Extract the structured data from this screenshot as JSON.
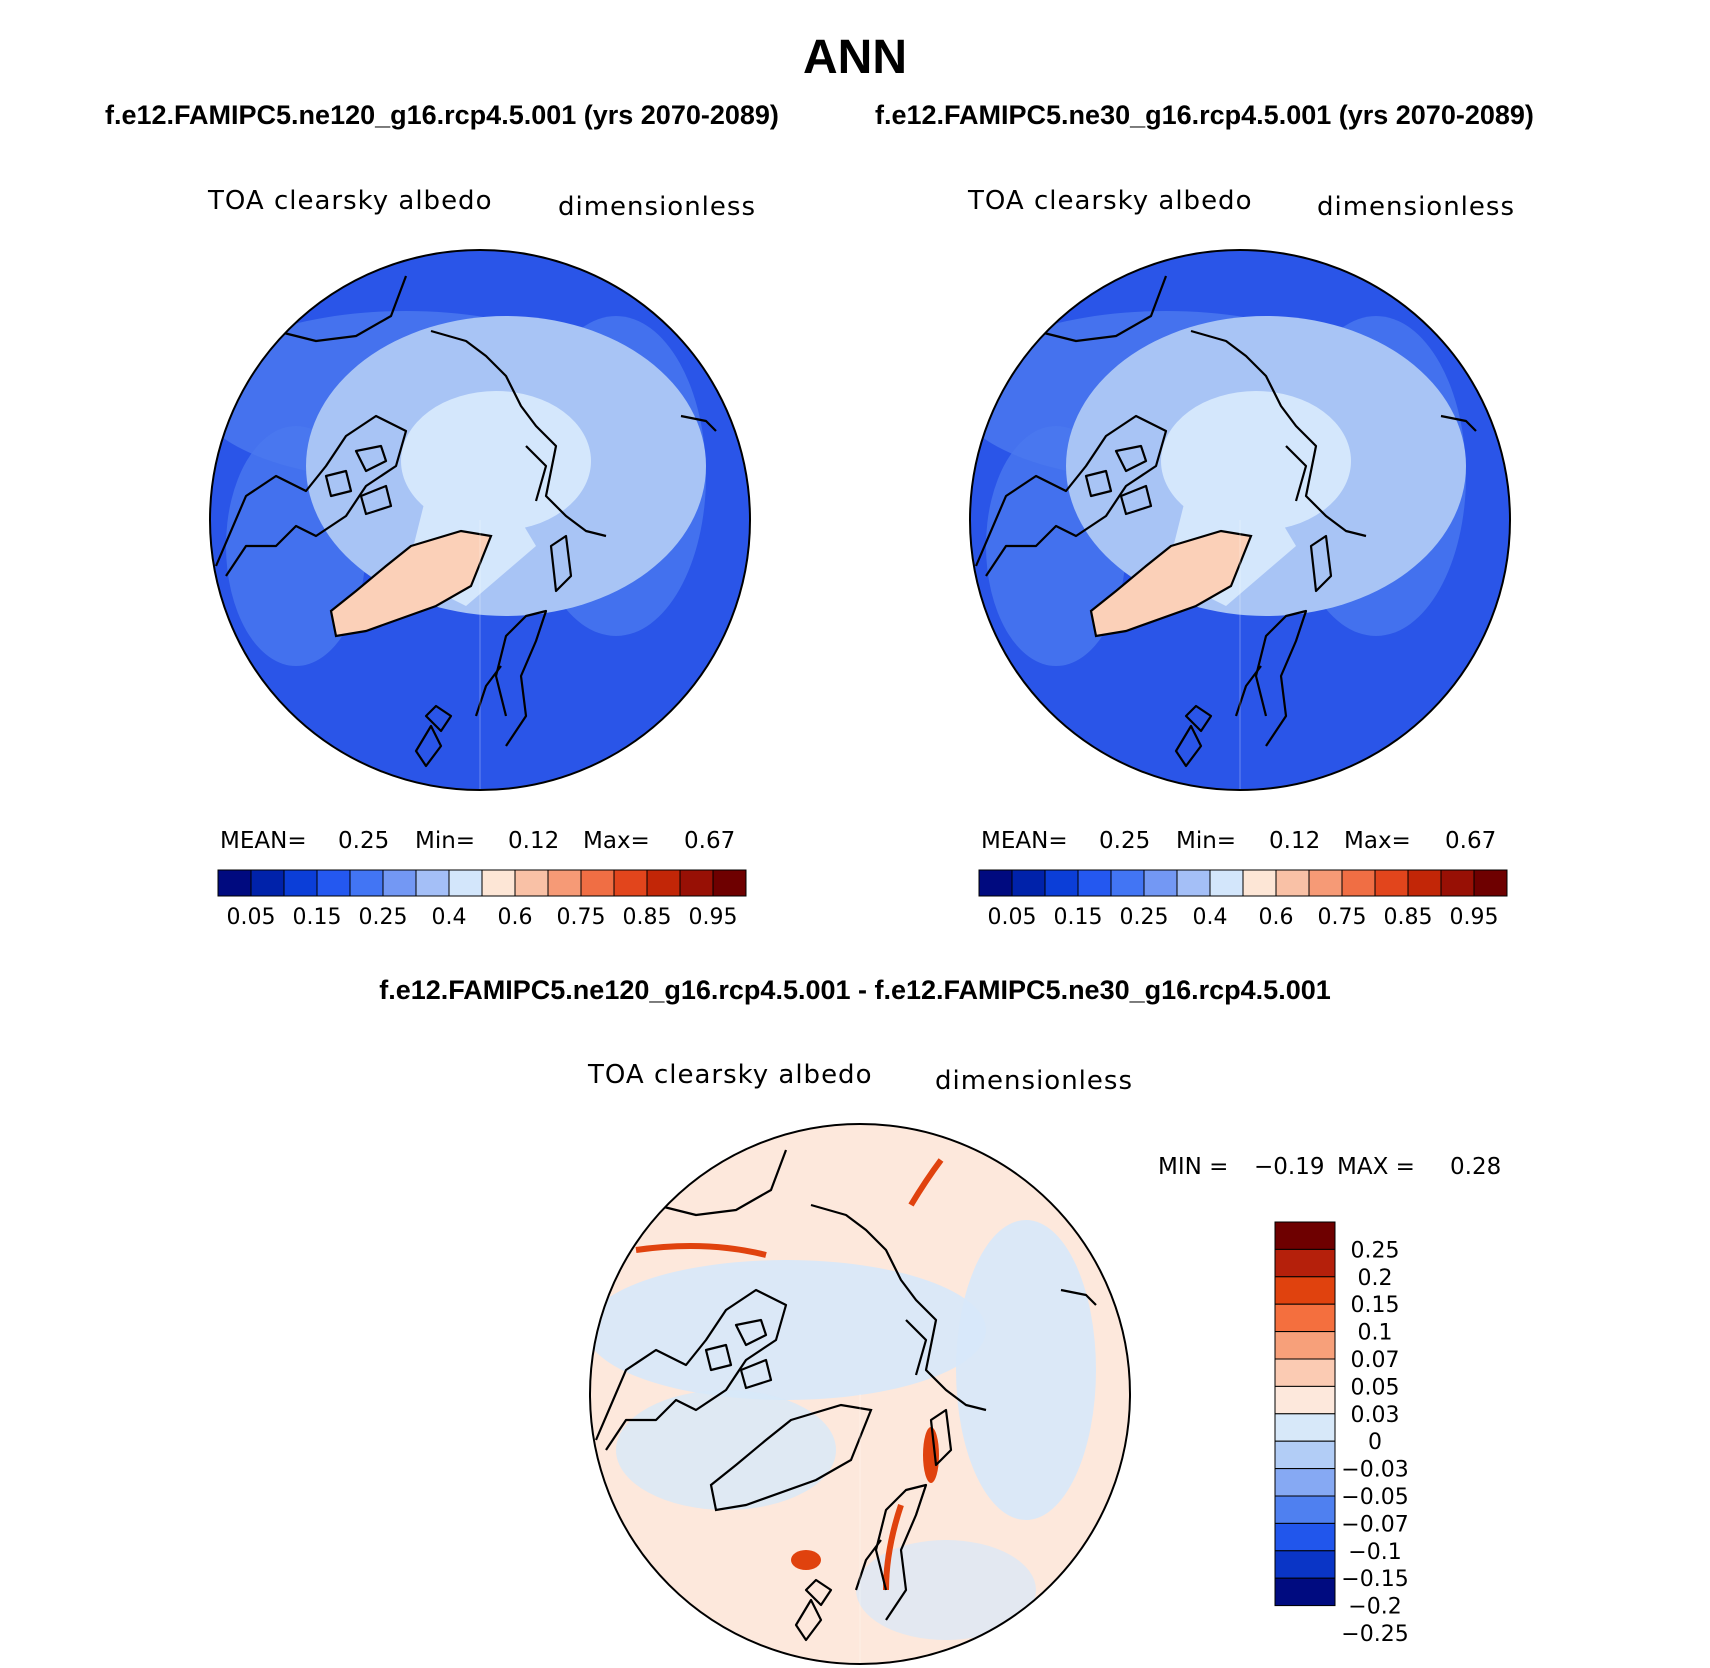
{
  "title": "ANN",
  "case_titles": [
    "f.e12.FAMIPC5.ne120_g16.rcp4.5.001 (yrs 2070-2089)",
    "f.e12.FAMIPC5.ne30_g16.rcp4.5.001 (yrs 2070-2089)"
  ],
  "diff_title": "f.e12.FAMIPC5.ne120_g16.rcp4.5.001 - f.e12.FAMIPC5.ne30_g16.rcp4.5.001",
  "panels": [
    {
      "variable_label": "TOA clearsky albedo",
      "units_label": "dimensionless",
      "stats": {
        "mean_label": "MEAN=",
        "mean": "0.25",
        "min_label": "Min=",
        "min": "0.12",
        "max_label": "Max=",
        "max": "0.67"
      }
    },
    {
      "variable_label": "TOA clearsky albedo",
      "units_label": "dimensionless",
      "stats": {
        "mean_label": "MEAN=",
        "mean": "0.25",
        "min_label": "Min=",
        "min": "0.12",
        "max_label": "Max=",
        "max": "0.67"
      }
    }
  ],
  "diff_panel": {
    "variable_label": "TOA clearsky albedo",
    "units_label": "dimensionless",
    "stats": {
      "min_label": "MIN =",
      "min": "−0.19",
      "max_label": "MAX =",
      "max": "0.28"
    }
  },
  "colorbar_abs": {
    "colors": [
      "#000a7f",
      "#0022aa",
      "#0b3ed8",
      "#2458f0",
      "#4275f4",
      "#7398f4",
      "#a4bff7",
      "#d3e6fb",
      "#fde6d6",
      "#f9c1a6",
      "#f69a76",
      "#f06e44",
      "#e2451c",
      "#c22607",
      "#981005",
      "#6e0000"
    ],
    "tick_labels": [
      "0.05",
      "0.15",
      "0.25",
      "0.4",
      "0.6",
      "0.75",
      "0.85",
      "0.95"
    ]
  },
  "colorbar_diff": {
    "colors": [
      "#6e0000",
      "#b5200b",
      "#e0420e",
      "#f46f3e",
      "#f7a07a",
      "#fbcbb3",
      "#fde8dc",
      "#d7e8f9",
      "#b2cdf6",
      "#86a9f3",
      "#4f80f0",
      "#2156ec",
      "#0a35c6",
      "#000b80"
    ],
    "tick_labels": [
      "0.25",
      "0.2",
      "0.15",
      "0.1",
      "0.07",
      "0.05",
      "0.03",
      "0",
      "−0.03",
      "−0.05",
      "−0.07",
      "−0.1",
      "−0.15",
      "−0.2",
      "−0.25"
    ]
  },
  "map_colors": {
    "ocean_abs": "#2a55e8",
    "ocean_abs_light": "#4a78ef",
    "seaice_abs": "#a8c4f5",
    "arctic_core_abs": "#d4e7fc",
    "greenland_abs": "#fbd0b8",
    "diff_background": "#fde8dc",
    "diff_blue": "#d7e8f9",
    "diff_red": "#e0420e"
  }
}
